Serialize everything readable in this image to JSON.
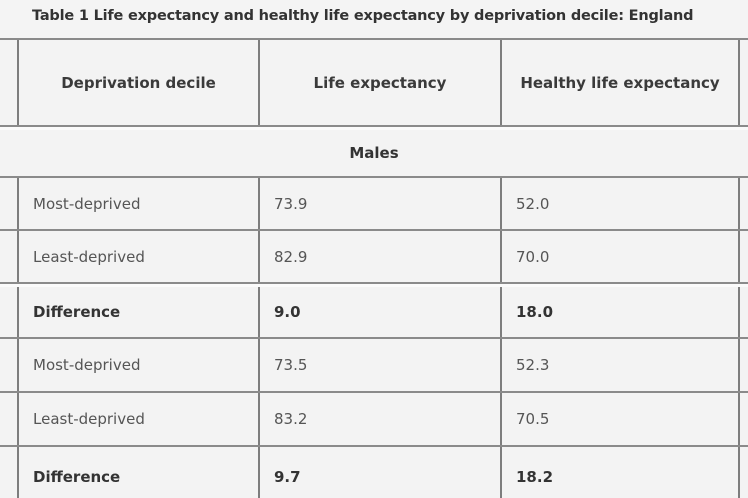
{
  "table": {
    "title": "Table 1 Life expectancy and healthy life expectancy by deprivation decile: England",
    "columns": [
      "Deprivation decile",
      "Life expectancy",
      "Healthy life expectancy"
    ],
    "sections": [
      {
        "label": "Males",
        "rows": [
          {
            "decile": "Most-deprived",
            "life_expectancy": "73.9",
            "healthy_life_expectancy": "52.0",
            "bold": false
          },
          {
            "decile": "Least-deprived",
            "life_expectancy": "82.9",
            "healthy_life_expectancy": "70.0",
            "bold": false
          },
          {
            "decile": "Difference",
            "life_expectancy": "9.0",
            "healthy_life_expectancy": "18.0",
            "bold": true
          }
        ]
      },
      {
        "label": "",
        "rows": [
          {
            "decile": "Most-deprived",
            "life_expectancy": "73.5",
            "healthy_life_expectancy": "52.3",
            "bold": false
          },
          {
            "decile": "Least-deprived",
            "life_expectancy": "83.2",
            "healthy_life_expectancy": "70.5",
            "bold": false
          },
          {
            "decile": "Difference",
            "life_expectancy": "9.7",
            "healthy_life_expectancy": "18.2",
            "bold": true
          }
        ]
      }
    ]
  }
}
